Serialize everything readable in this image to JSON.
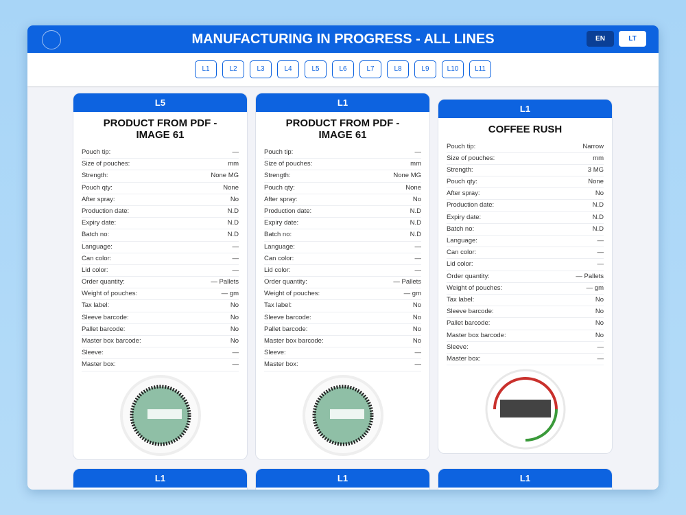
{
  "header": {
    "title": "MANUFACTURING IN PROGRESS - ALL LINES",
    "languages": [
      "EN",
      "LT"
    ]
  },
  "lines": [
    "L1",
    "L2",
    "L3",
    "L4",
    "L5",
    "L6",
    "L7",
    "L8",
    "L9",
    "L10",
    "L11"
  ],
  "cards": [
    {
      "line": "L5",
      "title": "PRODUCT FROM PDF - IMAGE 61",
      "fields": [
        [
          "Pouch tip:",
          "—"
        ],
        [
          "Size of pouches:",
          "mm"
        ],
        [
          "Strength:",
          "None MG"
        ],
        [
          "Pouch qty:",
          "None"
        ],
        [
          "After spray:",
          "No"
        ],
        [
          "Production date:",
          "N.D"
        ],
        [
          "Expiry date:",
          "N.D"
        ],
        [
          "Batch no:",
          "N.D"
        ],
        [
          "Language:",
          "—"
        ],
        [
          "Can color:",
          "—"
        ],
        [
          "Lid color:",
          "—"
        ],
        [
          "Order quantity:",
          "— Pallets"
        ],
        [
          "Weight of pouches:",
          "— gm"
        ],
        [
          "Tax label:",
          "No"
        ],
        [
          "Sleeve barcode:",
          "No"
        ],
        [
          "Pallet barcode:",
          "No"
        ],
        [
          "Master box barcode:",
          "No"
        ],
        [
          "Sleeve:",
          "—"
        ],
        [
          "Master box:",
          "—"
        ]
      ]
    },
    {
      "line": "L1",
      "title": "PRODUCT FROM PDF - IMAGE 61",
      "fields": [
        [
          "Pouch tip:",
          "—"
        ],
        [
          "Size of pouches:",
          "mm"
        ],
        [
          "Strength:",
          "None MG"
        ],
        [
          "Pouch qty:",
          "None"
        ],
        [
          "After spray:",
          "No"
        ],
        [
          "Production date:",
          "N.D"
        ],
        [
          "Expiry date:",
          "N.D"
        ],
        [
          "Batch no:",
          "N.D"
        ],
        [
          "Language:",
          "—"
        ],
        [
          "Can color:",
          "—"
        ],
        [
          "Lid color:",
          "—"
        ],
        [
          "Order quantity:",
          "— Pallets"
        ],
        [
          "Weight of pouches:",
          "— gm"
        ],
        [
          "Tax label:",
          "No"
        ],
        [
          "Sleeve barcode:",
          "No"
        ],
        [
          "Pallet barcode:",
          "No"
        ],
        [
          "Master box barcode:",
          "No"
        ],
        [
          "Sleeve:",
          "—"
        ],
        [
          "Master box:",
          "—"
        ]
      ]
    },
    {
      "line": "L1",
      "title": "COFFEE RUSH",
      "fields": [
        [
          "Pouch tip:",
          "Narrow"
        ],
        [
          "Size of pouches:",
          "mm"
        ],
        [
          "Strength:",
          "3 MG"
        ],
        [
          "Pouch qty:",
          "None"
        ],
        [
          "After spray:",
          "No"
        ],
        [
          "Production date:",
          "N.D"
        ],
        [
          "Expiry date:",
          "N.D"
        ],
        [
          "Batch no:",
          "N.D"
        ],
        [
          "Language:",
          "—"
        ],
        [
          "Can color:",
          "—"
        ],
        [
          "Lid color:",
          "—"
        ],
        [
          "Order quantity:",
          "— Pallets"
        ],
        [
          "Weight of pouches:",
          "— gm"
        ],
        [
          "Tax label:",
          "No"
        ],
        [
          "Sleeve barcode:",
          "No"
        ],
        [
          "Pallet barcode:",
          "No"
        ],
        [
          "Master box barcode:",
          "No"
        ],
        [
          "Sleeve:",
          "—"
        ],
        [
          "Master box:",
          "—"
        ]
      ]
    },
    {
      "line": "L1"
    },
    {
      "line": "L1"
    },
    {
      "line": "L1"
    }
  ]
}
